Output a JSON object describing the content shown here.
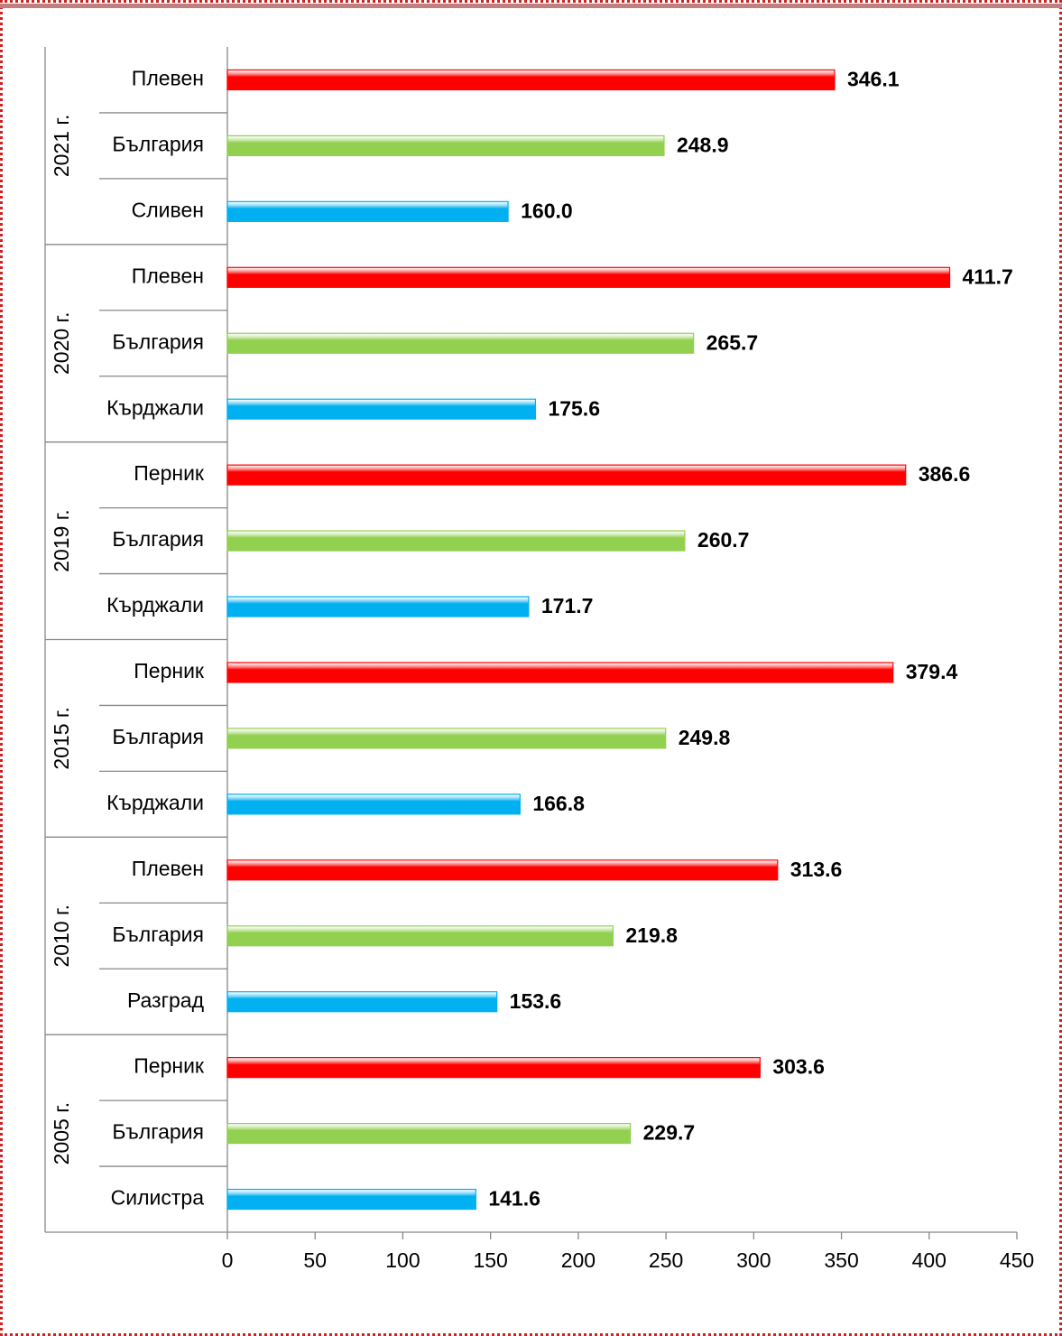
{
  "chart_data": {
    "type": "bar",
    "orientation": "horizontal",
    "bar_colors": [
      "#ff0000",
      "#92d050",
      "#00b0f0"
    ],
    "groups": [
      {
        "name": "2021 г.",
        "categories": [
          "Плевен",
          "България",
          "Сливен"
        ],
        "values": [
          346.1,
          248.9,
          160.0
        ],
        "value_labels": [
          "346.1",
          "248.9",
          "160.0"
        ]
      },
      {
        "name": "2020 г.",
        "categories": [
          "Плевен",
          "България",
          "Кърджали"
        ],
        "values": [
          411.7,
          265.7,
          175.6
        ],
        "value_labels": [
          "411.7",
          "265.7",
          "175.6"
        ]
      },
      {
        "name": "2019 г.",
        "categories": [
          "Перник",
          "България",
          "Кърджали"
        ],
        "values": [
          386.6,
          260.7,
          171.7
        ],
        "value_labels": [
          "386.6",
          "260.7",
          "171.7"
        ]
      },
      {
        "name": "2015 г.",
        "categories": [
          "Перник",
          "България",
          "Кърджали"
        ],
        "values": [
          379.4,
          249.8,
          166.8
        ],
        "value_labels": [
          "379.4",
          "249.8",
          "166.8"
        ]
      },
      {
        "name": "2010 г.",
        "categories": [
          "Плевен",
          "България",
          "Разград"
        ],
        "values": [
          313.6,
          219.8,
          153.6
        ],
        "value_labels": [
          "313.6",
          "219.8",
          "153.6"
        ]
      },
      {
        "name": "2005 г.",
        "categories": [
          "Перник",
          "България",
          "Силистра"
        ],
        "values": [
          303.6,
          229.7,
          141.6
        ],
        "value_labels": [
          "303.6",
          "229.7",
          "141.6"
        ]
      }
    ],
    "xlim": [
      0,
      450
    ],
    "xticks": [
      0,
      50,
      100,
      150,
      200,
      250,
      300,
      350,
      400,
      450
    ]
  }
}
